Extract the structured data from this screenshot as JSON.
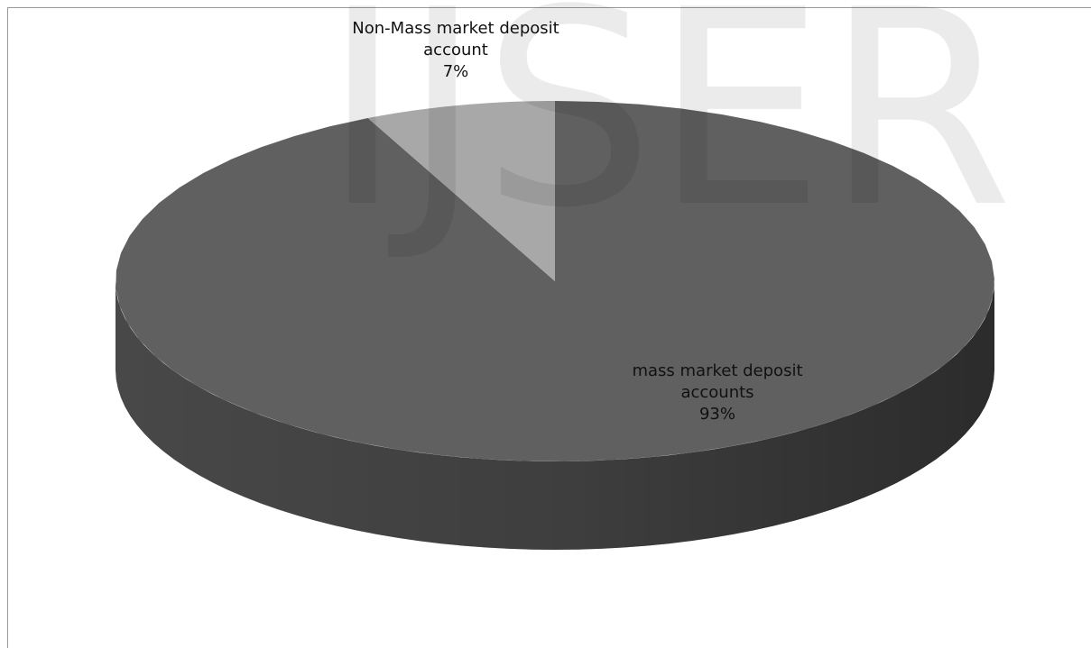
{
  "watermark": "IJSER",
  "chart_data": {
    "type": "pie",
    "categories": [
      "mass market deposit accounts",
      "Non-Mass market deposit account"
    ],
    "values": [
      93,
      7
    ],
    "value_labels": [
      "93%",
      "7%"
    ],
    "colors": [
      "#606060",
      "#a8a8a8"
    ]
  }
}
